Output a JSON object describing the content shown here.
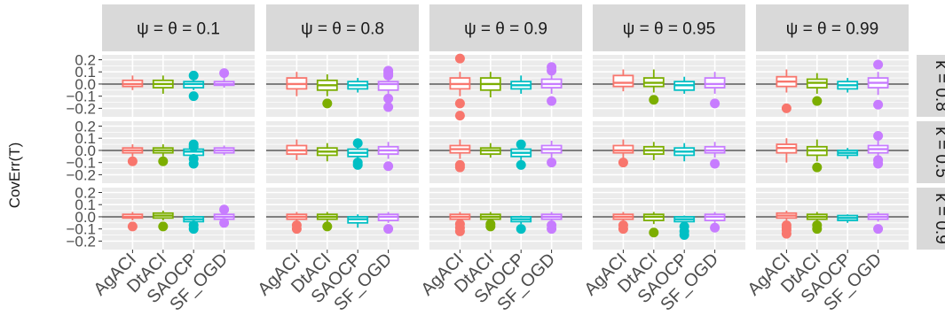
{
  "chart_data": {
    "type": "boxplot",
    "facet_cols": [
      "ψ = θ = 0.1",
      "ψ = θ = 0.8",
      "ψ = θ = 0.9",
      "ψ = θ = 0.95",
      "ψ = θ = 0.99"
    ],
    "facet_rows": [
      "κ = 0.8",
      "κ = 0.5",
      "κ = 0.9"
    ],
    "categories": [
      "AgACI",
      "DtACI",
      "SAOCP",
      "SF_OGD"
    ],
    "colors": [
      "#F8766D",
      "#7CAE00",
      "#00BFC4",
      "#C77CFF"
    ],
    "ylabel": "CovErr(T)",
    "xlabel": "",
    "ylim": [
      -0.27,
      0.24
    ],
    "yticks": [
      0.2,
      0.1,
      0.0,
      -0.1,
      -0.2
    ],
    "ytick_labels": [
      "0.2",
      "0.1",
      "0.0",
      "−0.1",
      "−0.2"
    ],
    "reference_line": 0.0,
    "grid": true,
    "panels": [
      [
        [
          {
            "q1": -0.02,
            "med": 0.0,
            "q3": 0.03,
            "lo": -0.05,
            "hi": 0.07,
            "out": []
          },
          {
            "q1": -0.03,
            "med": 0.0,
            "q3": 0.03,
            "lo": -0.08,
            "hi": 0.07,
            "out": []
          },
          {
            "q1": -0.03,
            "med": 0.0,
            "q3": 0.02,
            "lo": -0.05,
            "hi": 0.04,
            "out": [
              0.07,
              -0.1
            ]
          },
          {
            "q1": -0.01,
            "med": 0.0,
            "q3": 0.02,
            "lo": -0.03,
            "hi": 0.05,
            "out": [
              0.09
            ]
          }
        ],
        [
          {
            "q1": -0.04,
            "med": 0.0,
            "q3": 0.05,
            "lo": -0.1,
            "hi": 0.1,
            "out": []
          },
          {
            "q1": -0.05,
            "med": -0.01,
            "q3": 0.03,
            "lo": -0.1,
            "hi": 0.08,
            "out": [
              -0.16
            ]
          },
          {
            "q1": -0.04,
            "med": -0.01,
            "q3": 0.02,
            "lo": -0.07,
            "hi": 0.05,
            "out": []
          },
          {
            "q1": -0.05,
            "med": 0.0,
            "q3": 0.02,
            "lo": -0.08,
            "hi": 0.06,
            "out": [
              0.09,
              0.11,
              0.07,
              -0.12,
              -0.19
            ]
          }
        ],
        [
          {
            "q1": -0.04,
            "med": 0.0,
            "q3": 0.05,
            "lo": -0.1,
            "hi": 0.1,
            "out": [
              0.21,
              -0.16,
              -0.26
            ]
          },
          {
            "q1": -0.05,
            "med": 0.0,
            "q3": 0.05,
            "lo": -0.11,
            "hi": 0.1,
            "out": []
          },
          {
            "q1": -0.04,
            "med": -0.01,
            "q3": 0.02,
            "lo": -0.08,
            "hi": 0.07,
            "out": []
          },
          {
            "q1": -0.03,
            "med": 0.0,
            "q3": 0.04,
            "lo": -0.08,
            "hi": 0.08,
            "out": [
              0.14,
              0.11,
              -0.14
            ]
          }
        ],
        [
          {
            "q1": -0.02,
            "med": 0.01,
            "q3": 0.07,
            "lo": -0.06,
            "hi": 0.12,
            "out": []
          },
          {
            "q1": -0.02,
            "med": 0.01,
            "q3": 0.05,
            "lo": -0.07,
            "hi": 0.12,
            "out": [
              -0.13
            ]
          },
          {
            "q1": -0.05,
            "med": -0.01,
            "q3": 0.02,
            "lo": -0.08,
            "hi": 0.06,
            "out": []
          },
          {
            "q1": -0.03,
            "med": 0.0,
            "q3": 0.05,
            "lo": -0.08,
            "hi": 0.1,
            "out": [
              -0.16
            ]
          }
        ],
        [
          {
            "q1": -0.02,
            "med": 0.02,
            "q3": 0.06,
            "lo": -0.07,
            "hi": 0.12,
            "out": [
              -0.2
            ]
          },
          {
            "q1": -0.03,
            "med": 0.01,
            "q3": 0.04,
            "lo": -0.08,
            "hi": 0.09,
            "out": [
              -0.14
            ]
          },
          {
            "q1": -0.04,
            "med": -0.01,
            "q3": 0.02,
            "lo": -0.07,
            "hi": 0.05,
            "out": []
          },
          {
            "q1": -0.03,
            "med": 0.01,
            "q3": 0.05,
            "lo": -0.09,
            "hi": 0.1,
            "out": [
              0.16,
              -0.17
            ]
          }
        ]
      ],
      [
        [
          {
            "q1": -0.02,
            "med": 0.0,
            "q3": 0.02,
            "lo": -0.05,
            "hi": 0.05,
            "out": [
              -0.09
            ]
          },
          {
            "q1": -0.02,
            "med": 0.0,
            "q3": 0.02,
            "lo": -0.05,
            "hi": 0.05,
            "out": [
              -0.09
            ]
          },
          {
            "q1": -0.04,
            "med": -0.01,
            "q3": 0.01,
            "lo": -0.07,
            "hi": 0.03,
            "out": [
              0.05,
              0.03,
              -0.07,
              -0.11
            ]
          },
          {
            "q1": -0.02,
            "med": 0.0,
            "q3": 0.02,
            "lo": -0.04,
            "hi": 0.04,
            "out": []
          }
        ],
        [
          {
            "q1": -0.03,
            "med": 0.0,
            "q3": 0.04,
            "lo": -0.08,
            "hi": 0.09,
            "out": []
          },
          {
            "q1": -0.04,
            "med": -0.01,
            "q3": 0.02,
            "lo": -0.09,
            "hi": 0.06,
            "out": []
          },
          {
            "q1": -0.05,
            "med": -0.02,
            "q3": 0.01,
            "lo": -0.08,
            "hi": 0.05,
            "out": [
              0.06,
              -0.1,
              -0.12
            ]
          },
          {
            "q1": -0.03,
            "med": 0.0,
            "q3": 0.03,
            "lo": -0.07,
            "hi": 0.07,
            "out": [
              -0.13
            ]
          }
        ],
        [
          {
            "q1": -0.02,
            "med": 0.01,
            "q3": 0.04,
            "lo": -0.07,
            "hi": 0.09,
            "out": [
              -0.12,
              -0.14
            ]
          },
          {
            "q1": -0.03,
            "med": 0.0,
            "q3": 0.02,
            "lo": -0.06,
            "hi": 0.06,
            "out": []
          },
          {
            "q1": -0.05,
            "med": -0.02,
            "q3": 0.01,
            "lo": -0.08,
            "hi": 0.04,
            "out": [
              0.05,
              -0.12
            ]
          },
          {
            "q1": -0.02,
            "med": 0.01,
            "q3": 0.04,
            "lo": -0.06,
            "hi": 0.08,
            "out": [
              -0.1
            ]
          }
        ],
        [
          {
            "q1": -0.02,
            "med": 0.0,
            "q3": 0.04,
            "lo": -0.07,
            "hi": 0.09,
            "out": [
              -0.1
            ]
          },
          {
            "q1": -0.03,
            "med": 0.0,
            "q3": 0.03,
            "lo": -0.08,
            "hi": 0.07,
            "out": []
          },
          {
            "q1": -0.04,
            "med": -0.01,
            "q3": 0.02,
            "lo": -0.09,
            "hi": 0.06,
            "out": []
          },
          {
            "q1": -0.02,
            "med": 0.0,
            "q3": 0.03,
            "lo": -0.06,
            "hi": 0.07,
            "out": [
              -0.11
            ]
          }
        ],
        [
          {
            "q1": -0.02,
            "med": 0.02,
            "q3": 0.05,
            "lo": -0.1,
            "hi": 0.1,
            "out": []
          },
          {
            "q1": -0.04,
            "med": 0.0,
            "q3": 0.03,
            "lo": -0.09,
            "hi": 0.09,
            "out": [
              -0.14
            ]
          },
          {
            "q1": -0.04,
            "med": -0.02,
            "q3": 0.0,
            "lo": -0.07,
            "hi": 0.02,
            "out": []
          },
          {
            "q1": -0.02,
            "med": 0.01,
            "q3": 0.04,
            "lo": -0.06,
            "hi": 0.08,
            "out": [
              0.12,
              -0.08,
              -0.11
            ]
          }
        ]
      ],
      [
        [
          {
            "q1": -0.01,
            "med": 0.0,
            "q3": 0.02,
            "lo": -0.03,
            "hi": 0.04,
            "out": [
              -0.08
            ]
          },
          {
            "q1": -0.01,
            "med": 0.01,
            "q3": 0.03,
            "lo": -0.03,
            "hi": 0.05,
            "out": [
              -0.08
            ]
          },
          {
            "q1": -0.04,
            "med": -0.02,
            "q3": 0.0,
            "lo": -0.06,
            "hi": 0.01,
            "out": [
              -0.07,
              -0.1
            ]
          },
          {
            "q1": -0.02,
            "med": 0.0,
            "q3": 0.02,
            "lo": -0.04,
            "hi": 0.05,
            "out": [
              0.06,
              -0.05
            ]
          }
        ],
        [
          {
            "q1": -0.02,
            "med": 0.0,
            "q3": 0.02,
            "lo": -0.04,
            "hi": 0.04,
            "out": [
              -0.07,
              -0.1
            ]
          },
          {
            "q1": -0.02,
            "med": 0.0,
            "q3": 0.02,
            "lo": -0.05,
            "hi": 0.04,
            "out": [
              -0.08
            ]
          },
          {
            "q1": -0.05,
            "med": -0.02,
            "q3": 0.0,
            "lo": -0.09,
            "hi": 0.02,
            "out": []
          },
          {
            "q1": -0.03,
            "med": 0.0,
            "q3": 0.02,
            "lo": -0.05,
            "hi": 0.04,
            "out": [
              -0.1
            ]
          }
        ],
        [
          {
            "q1": -0.02,
            "med": 0.0,
            "q3": 0.02,
            "lo": -0.04,
            "hi": 0.04,
            "out": [
              -0.06,
              -0.09,
              -0.12
            ]
          },
          {
            "q1": -0.02,
            "med": 0.0,
            "q3": 0.02,
            "lo": -0.04,
            "hi": 0.04,
            "out": [
              -0.06,
              -0.08
            ]
          },
          {
            "q1": -0.04,
            "med": -0.02,
            "q3": 0.0,
            "lo": -0.06,
            "hi": 0.01,
            "out": [
              -0.1
            ]
          },
          {
            "q1": -0.02,
            "med": 0.0,
            "q3": 0.02,
            "lo": -0.04,
            "hi": 0.04,
            "out": [
              -0.07,
              -0.1
            ]
          }
        ],
        [
          {
            "q1": -0.02,
            "med": 0.0,
            "q3": 0.02,
            "lo": -0.04,
            "hi": 0.04,
            "out": [
              -0.07,
              -0.1
            ]
          },
          {
            "q1": -0.03,
            "med": 0.0,
            "q3": 0.02,
            "lo": -0.06,
            "hi": 0.04,
            "out": [
              -0.13
            ]
          },
          {
            "q1": -0.04,
            "med": -0.02,
            "q3": 0.0,
            "lo": -0.06,
            "hi": 0.01,
            "out": [
              -0.08,
              -0.12,
              -0.15
            ]
          },
          {
            "q1": -0.03,
            "med": 0.0,
            "q3": 0.02,
            "lo": -0.05,
            "hi": 0.04,
            "out": [
              -0.09
            ]
          }
        ],
        [
          {
            "q1": -0.01,
            "med": 0.01,
            "q3": 0.03,
            "lo": -0.03,
            "hi": 0.05,
            "out": [
              -0.07,
              -0.09,
              -0.11,
              -0.14
            ]
          },
          {
            "q1": -0.02,
            "med": 0.0,
            "q3": 0.02,
            "lo": -0.04,
            "hi": 0.04,
            "out": [
              -0.07,
              -0.1
            ]
          },
          {
            "q1": -0.03,
            "med": -0.01,
            "q3": 0.01,
            "lo": -0.05,
            "hi": 0.02,
            "out": []
          },
          {
            "q1": -0.02,
            "med": 0.0,
            "q3": 0.02,
            "lo": -0.04,
            "hi": 0.04,
            "out": [
              -0.1
            ]
          }
        ]
      ]
    ]
  }
}
